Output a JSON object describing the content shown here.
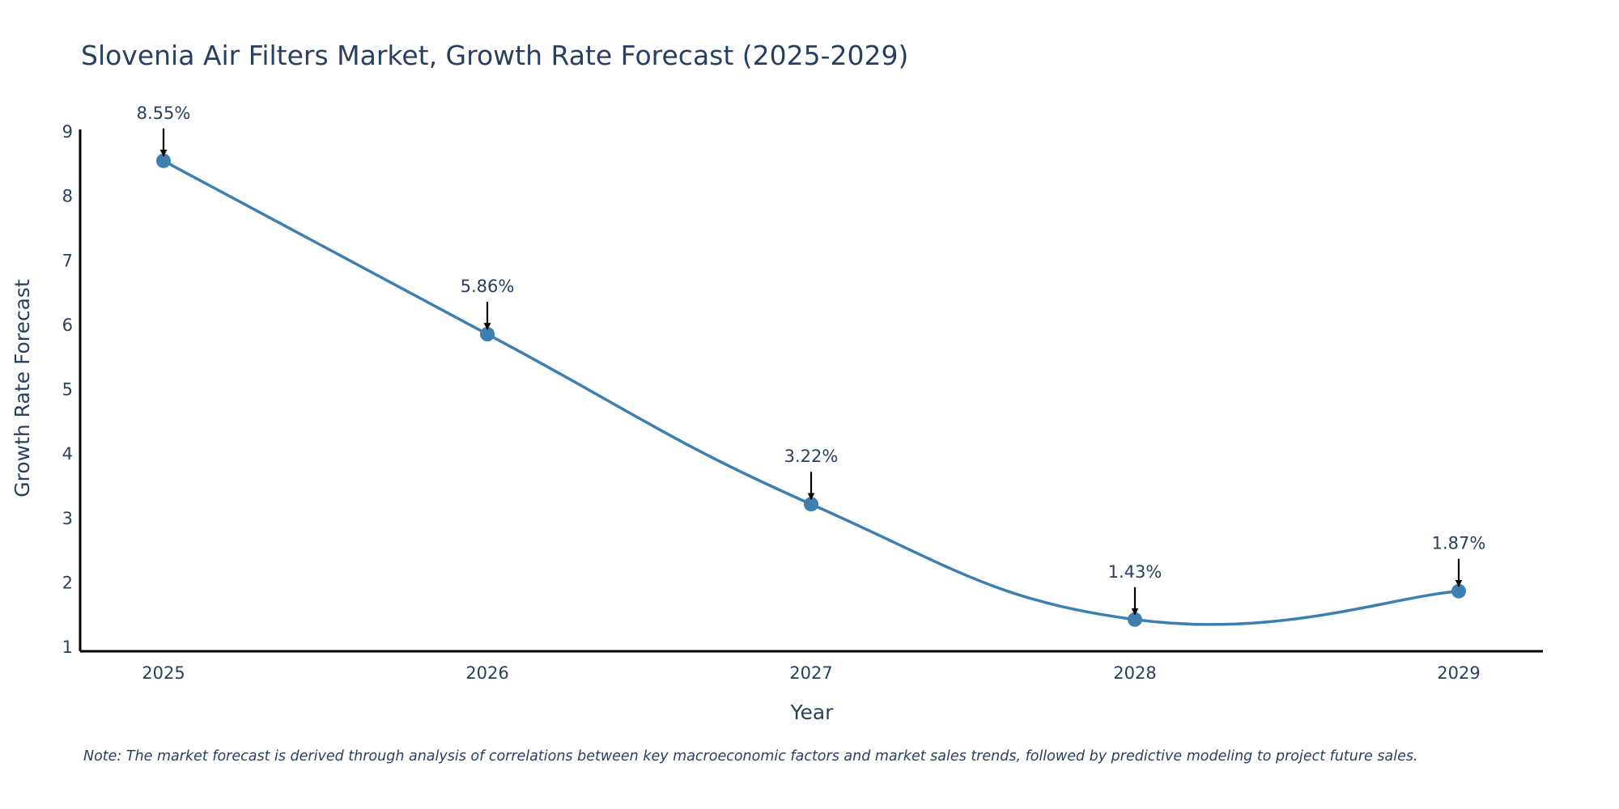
{
  "chart_data": {
    "type": "line",
    "title": "Slovenia Air Filters Market, Growth Rate Forecast (2025-2029)",
    "xlabel": "Year",
    "ylabel": "Growth Rate Forecast",
    "categories": [
      "2025",
      "2026",
      "2027",
      "2028",
      "2029"
    ],
    "values": [
      8.55,
      5.86,
      3.22,
      1.43,
      1.87
    ],
    "data_labels": [
      "8.55%",
      "5.86%",
      "3.22%",
      "1.43%",
      "1.87%"
    ],
    "y_ticks": [
      "1",
      "2",
      "3",
      "4",
      "5",
      "6",
      "7",
      "8",
      "9"
    ],
    "ylim": [
      1,
      9
    ],
    "grid": false,
    "line_color": "#3d7fb0",
    "marker_color": "#3d7fb0",
    "arrow_color": "#000000"
  },
  "note": "Note: The market forecast is derived through analysis of correlations between key macroeconomic factors and market sales trends, followed by predictive modeling to project future sales."
}
